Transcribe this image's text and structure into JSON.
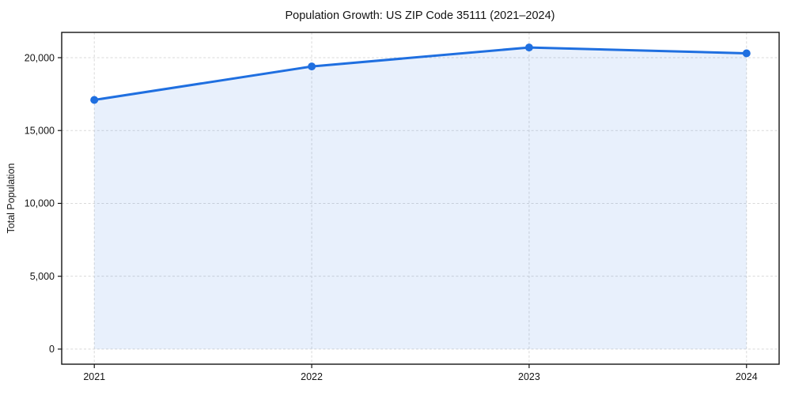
{
  "chart_data": {
    "type": "line",
    "title": "Population Growth: US ZIP Code 35111 (2021–2024)",
    "xlabel": "",
    "ylabel": "Total Population",
    "x": [
      2021,
      2022,
      2023,
      2024
    ],
    "x_tick_labels": [
      "2021",
      "2022",
      "2023",
      "2024"
    ],
    "series": [
      {
        "name": "Total Population",
        "values": [
          17100,
          19400,
          20700,
          20300
        ]
      }
    ],
    "y_ticks": [
      0,
      5000,
      10000,
      15000,
      20000
    ],
    "y_tick_labels": [
      "0",
      "5,000",
      "10,000",
      "15,000",
      "20,000"
    ],
    "xlim": [
      2020.85,
      2024.15
    ],
    "ylim": [
      -1035,
      21735
    ],
    "grid": true,
    "grid_style": "dashed-both-axes",
    "legend": false,
    "marker": "circle",
    "area_fill": true,
    "area_baseline": 0,
    "colors": {
      "line": "#1f6fe0",
      "marker": "#1f6fe0",
      "area_fill": "rgba(31,111,224,0.10)",
      "grid": "#d9d9d9",
      "spine": "#141414",
      "text": "#141414"
    }
  }
}
